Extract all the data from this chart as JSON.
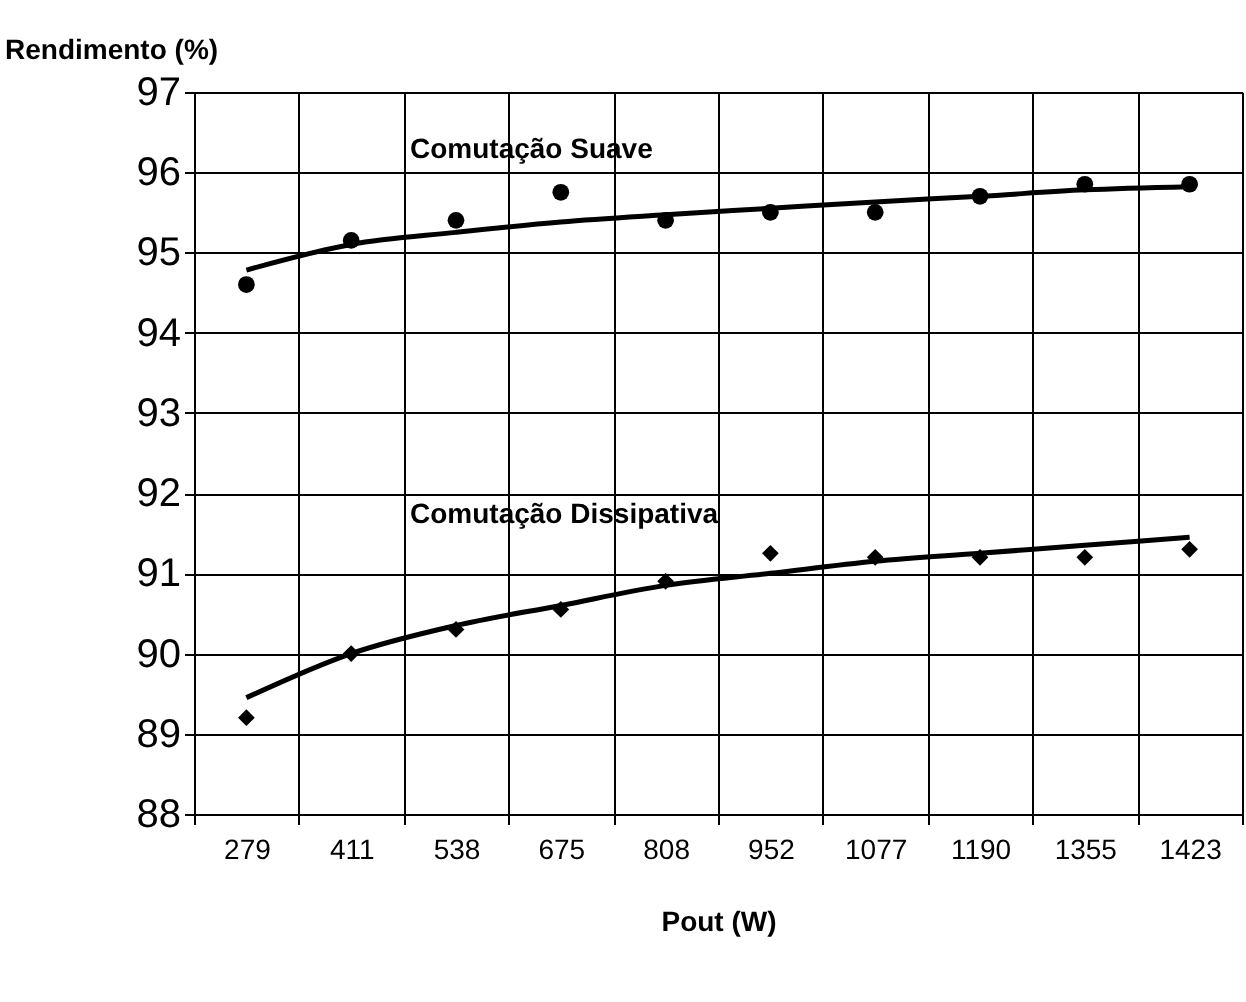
{
  "chart_data": {
    "type": "scatter",
    "xlabel": "Pout (W)",
    "ylabel": "Rendimento (%)",
    "categories": [
      "279",
      "411",
      "538",
      "675",
      "808",
      "952",
      "1077",
      "1190",
      "1355",
      "1423"
    ],
    "ylim": [
      88,
      97
    ],
    "yticks": [
      88,
      89,
      90,
      91,
      92,
      93,
      94,
      95,
      96,
      97
    ],
    "grid": true,
    "series": [
      {
        "name": "Comutação Suave",
        "type": "scatter",
        "marker": "circle",
        "color": "#000000",
        "values": [
          94.6,
          95.15,
          95.4,
          95.75,
          95.4,
          95.5,
          95.5,
          95.7,
          95.85,
          95.85
        ]
      },
      {
        "name": "Comutação Dissipativa",
        "type": "scatter",
        "marker": "diamond",
        "color": "#000000",
        "values": [
          89.2,
          90.0,
          90.3,
          90.55,
          90.9,
          91.25,
          91.2,
          91.2,
          91.2,
          91.3
        ]
      },
      {
        "type": "line",
        "line_style": "solid",
        "color": "#000000",
        "values": [
          94.78,
          95.1,
          95.25,
          95.38,
          95.47,
          95.55,
          95.63,
          95.7,
          95.78,
          95.82
        ]
      },
      {
        "type": "line",
        "line_style": "solid",
        "color": "#000000",
        "values": [
          89.45,
          90.0,
          90.35,
          90.6,
          90.85,
          91.0,
          91.15,
          91.25,
          91.35,
          91.45
        ]
      }
    ]
  }
}
